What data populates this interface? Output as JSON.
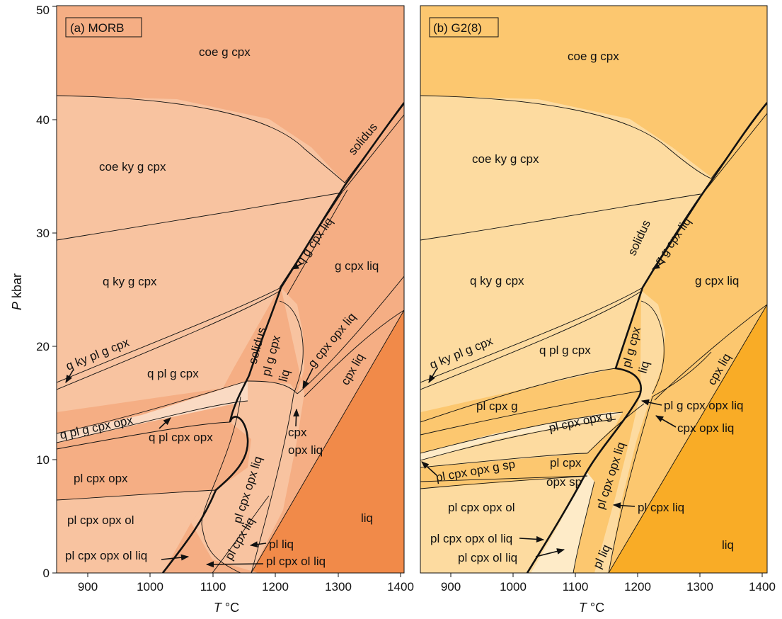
{
  "diagram": {
    "x_axis": {
      "label_italic": "T",
      "label_unit": "°C",
      "ticks": [
        "900",
        "1000",
        "1100",
        "1200",
        "1300",
        "1400"
      ],
      "range": [
        850,
        1405
      ]
    },
    "y_axis": {
      "label_italic": "P",
      "label_unit": "kbar",
      "ticks": [
        "0",
        "10",
        "20",
        "30",
        "40",
        "50"
      ],
      "range": [
        0,
        50
      ]
    },
    "panels": [
      {
        "title": "(a) MORB",
        "colors": {
          "light": "#F8C3A0",
          "mid": "#F5AE84",
          "dark": "#F18A49",
          "pale": "#FADAC3"
        },
        "fields": [
          "coe g cpx",
          "coe ky g cpx",
          "q ky g cpx",
          "g cpx liq",
          "q pl g cpx",
          "q ky pl g cpx",
          "q pl g cpx opx",
          "q pl cpx opx",
          "pl cpx opx",
          "pl cpx opx ol",
          "pl cpx opx ol liq",
          "pl liq",
          "pl cpx ol liq",
          "liq",
          "cpx liq",
          "cpx",
          "opx liq",
          "g cpx opx liq",
          "pl g cpx",
          "liq",
          "pl cpx opx liq",
          "pl cpx liq",
          "q g cpx liq",
          "solidus",
          "solidus"
        ]
      },
      {
        "title": "(b) G2(8)",
        "colors": {
          "light": "#FDDBA0",
          "mid": "#FCC76F",
          "dark": "#F9AC26",
          "pale": "#FEEBC8"
        },
        "fields": [
          "coe g cpx",
          "coe ky g cpx",
          "q ky g cpx",
          "g cpx liq",
          "q pl g cpx",
          "q ky pl g cpx",
          "pl cpx g",
          "pl cpx opx g",
          "pl g cpx opx liq",
          "cpx opx liq",
          "pl cpx opx g sp",
          "pl cpx",
          "opx sp",
          "pl cpx opx ol",
          "pl cpx opx ol liq",
          "pl cpx ol liq",
          "pl cpx liq",
          "liq",
          "cpx liq",
          "pl liq",
          "pl g cpx",
          "liq",
          "pl cpx opx liq",
          "q g cpx liq",
          "solidus"
        ]
      }
    ]
  }
}
